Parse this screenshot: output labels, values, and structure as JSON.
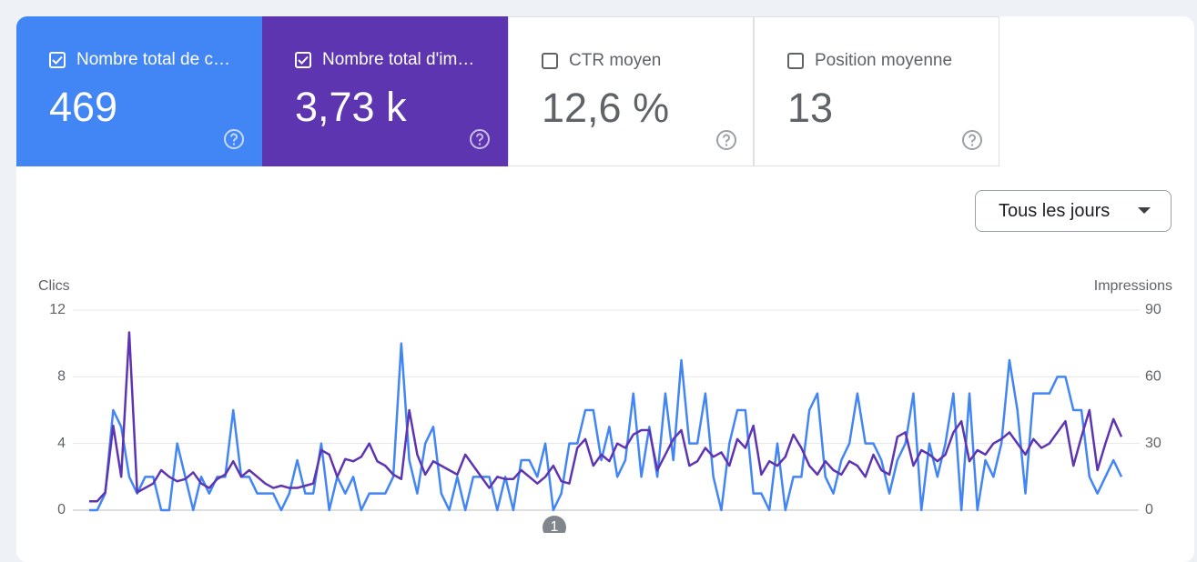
{
  "metrics": [
    {
      "label": "Nombre total de c…",
      "value": "469"
    },
    {
      "label": "Nombre total d'im…",
      "value": "3,73 k"
    },
    {
      "label": "CTR moyen",
      "value": "12,6 %"
    },
    {
      "label": "Position moyenne",
      "value": "13"
    }
  ],
  "period": "Tous les jours",
  "chart_data": {
    "type": "line",
    "y_label": "Clics",
    "y2_label": "Impressions",
    "ylim": [
      0,
      12
    ],
    "yticks": [
      0,
      4,
      8,
      12
    ],
    "y2lim": [
      0,
      90
    ],
    "y2ticks": [
      0,
      30,
      60,
      90
    ],
    "grid": true,
    "annotation": "1",
    "series": [
      {
        "color": "#4285f4",
        "values": [
          0,
          0,
          1,
          6,
          5,
          2,
          1,
          2,
          2,
          0,
          0,
          4,
          2,
          0,
          2,
          1,
          2,
          2,
          6,
          2,
          2,
          1,
          1,
          1,
          0,
          1,
          3,
          1,
          1,
          4,
          0,
          2,
          1,
          2,
          0,
          1,
          1,
          1,
          2,
          10,
          3,
          1,
          4,
          5,
          1,
          0,
          2,
          0,
          2,
          2,
          2,
          0,
          2,
          0,
          3,
          3,
          2,
          4,
          0,
          1,
          4,
          4,
          6,
          6,
          3,
          5,
          2,
          3,
          7,
          2,
          5,
          2,
          7,
          3,
          9,
          4,
          4,
          7,
          2,
          0,
          4,
          6,
          6,
          1,
          1,
          0,
          4,
          0,
          2,
          2,
          6,
          7,
          2,
          1,
          3,
          4,
          7,
          4,
          4,
          3,
          1,
          3,
          4,
          7,
          0,
          4,
          2,
          4,
          7,
          0,
          7,
          0,
          3,
          2,
          4,
          9,
          6,
          1,
          7,
          7,
          7,
          8,
          8,
          6,
          6,
          2,
          1,
          2,
          3,
          2
        ]
      },
      {
        "color": "#5e35b1",
        "axis": "y2",
        "values": [
          4,
          4,
          8,
          38,
          15,
          80,
          8,
          10,
          12,
          18,
          15,
          13,
          14,
          17,
          12,
          10,
          14,
          16,
          22,
          15,
          18,
          15,
          12,
          10,
          11,
          10,
          10,
          11,
          12,
          27,
          25,
          15,
          23,
          22,
          24,
          30,
          22,
          20,
          16,
          14,
          45,
          25,
          16,
          22,
          20,
          18,
          16,
          25,
          20,
          15,
          10,
          15,
          14,
          14,
          18,
          15,
          12,
          15,
          20,
          13,
          12,
          28,
          32,
          20,
          25,
          22,
          30,
          28,
          34,
          36,
          36,
          18,
          25,
          32,
          36,
          20,
          22,
          28,
          24,
          26,
          20,
          32,
          28,
          38,
          16,
          22,
          20,
          24,
          34,
          28,
          20,
          16,
          22,
          18,
          16,
          22,
          20,
          15,
          25,
          18,
          16,
          33,
          35,
          20,
          27,
          25,
          22,
          25,
          35,
          40,
          22,
          27,
          25,
          30,
          32,
          35,
          30,
          25,
          32,
          28,
          30,
          35,
          40,
          20,
          33,
          45,
          18,
          30,
          41,
          33
        ]
      }
    ]
  }
}
